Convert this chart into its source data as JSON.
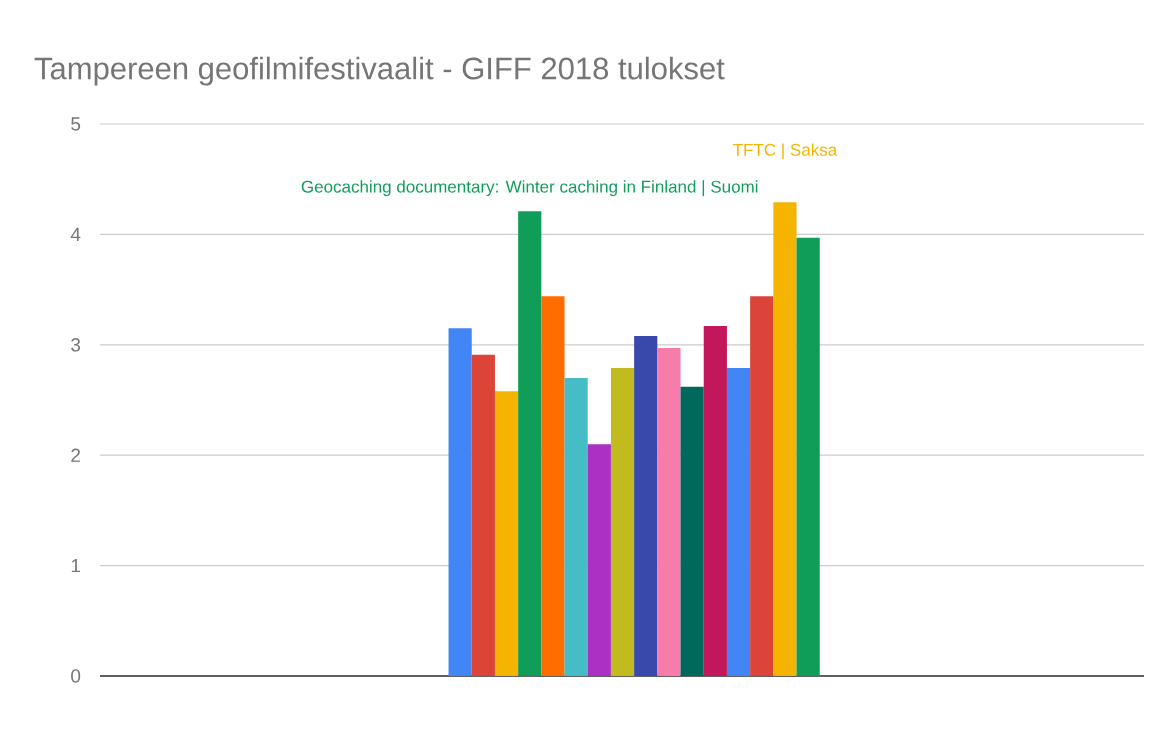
{
  "chart_data": {
    "type": "bar",
    "title": "Tampereen geofilmifestivaalit - GIFF 2018 tulokset",
    "categories": [
      null
    ],
    "ylim": [
      0,
      5
    ],
    "yticks": [
      0,
      1,
      2,
      3,
      4,
      5
    ],
    "grid": "y",
    "series": [
      {
        "color": "#4285f4",
        "values": [
          3.15
        ]
      },
      {
        "color": "#db4437",
        "values": [
          2.91
        ]
      },
      {
        "color": "#f4b400",
        "values": [
          2.58
        ]
      },
      {
        "name": "Geocaching documentary: Winter caching in Finland | Suomi",
        "color": "#0f9d58",
        "values": [
          4.21
        ]
      },
      {
        "color": "#ff6d00",
        "values": [
          3.44
        ]
      },
      {
        "color": "#46bdc6",
        "values": [
          2.7
        ]
      },
      {
        "color": "#ab30c4",
        "values": [
          2.1
        ]
      },
      {
        "color": "#c1bb20",
        "values": [
          2.79
        ]
      },
      {
        "color": "#3949ab",
        "values": [
          3.08
        ]
      },
      {
        "color": "#f77bab",
        "values": [
          2.97
        ]
      },
      {
        "color": "#00695c",
        "values": [
          2.62
        ]
      },
      {
        "color": "#c2185b",
        "values": [
          3.17
        ]
      },
      {
        "color": "#4285f4",
        "values": [
          2.79
        ]
      },
      {
        "color": "#db4437",
        "values": [
          3.44
        ]
      },
      {
        "name": "TFTC | Saksa",
        "color": "#f4b400",
        "values": [
          4.29
        ]
      },
      {
        "color": "#0f9d58",
        "values": [
          3.97
        ]
      }
    ]
  }
}
